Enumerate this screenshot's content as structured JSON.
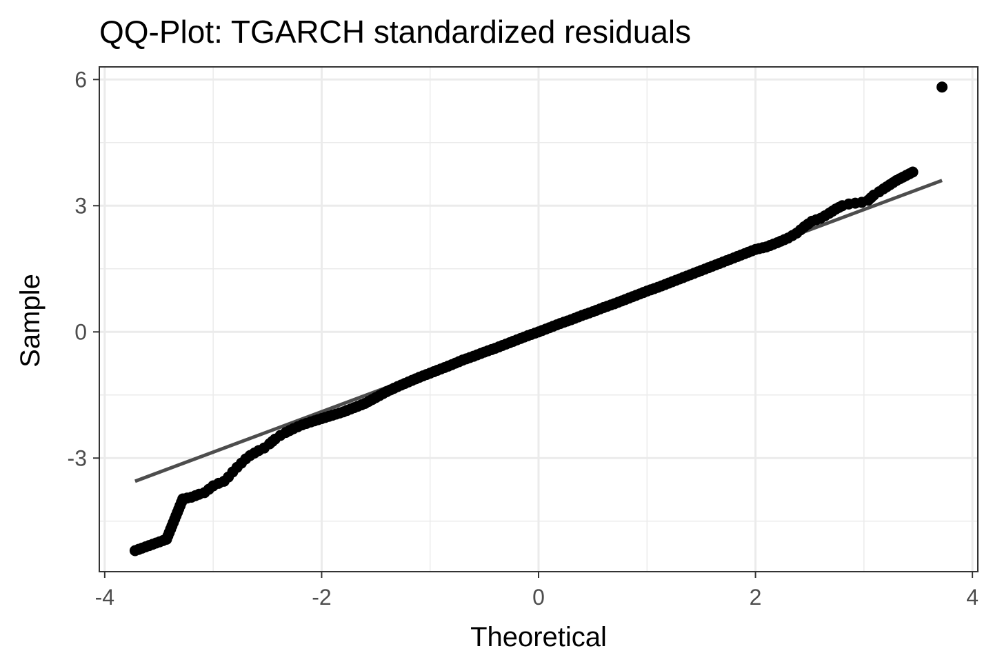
{
  "chart_data": {
    "type": "scatter",
    "title": "QQ-Plot: TGARCH standardized residuals",
    "xlabel": "Theoretical",
    "ylabel": "Sample",
    "xlim": [
      -4.05,
      4.05
    ],
    "ylim": [
      -5.7,
      6.3
    ],
    "xticks": [
      -4,
      -2,
      0,
      2,
      4
    ],
    "xtick_labels": [
      "-4",
      "-2",
      "0",
      "2",
      "4"
    ],
    "yticks": [
      -3,
      0,
      3,
      6
    ],
    "ytick_labels": [
      "-3",
      "0",
      "3",
      "6"
    ],
    "grid": true,
    "legend": "none",
    "point_color": "#000000",
    "line_color": "#4d4d4d",
    "reference_line": {
      "x": [
        -3.72,
        3.72
      ],
      "y": [
        -3.55,
        3.6
      ]
    },
    "points": [
      [
        -3.72,
        -5.2
      ],
      [
        -3.43,
        -4.93
      ],
      [
        -3.28,
        -3.97
      ],
      [
        -3.2,
        -3.93
      ],
      [
        -3.13,
        -3.86
      ],
      [
        -3.08,
        -3.82
      ],
      [
        -3.04,
        -3.74
      ],
      [
        -3.0,
        -3.66
      ],
      [
        -2.95,
        -3.6
      ],
      [
        -2.9,
        -3.55
      ],
      [
        -2.86,
        -3.45
      ],
      [
        -2.82,
        -3.33
      ],
      [
        -2.78,
        -3.22
      ],
      [
        -2.74,
        -3.12
      ],
      [
        -2.7,
        -3.02
      ],
      [
        -2.66,
        -2.94
      ],
      [
        -2.62,
        -2.88
      ],
      [
        -2.58,
        -2.82
      ],
      [
        -2.53,
        -2.76
      ],
      [
        -2.48,
        -2.66
      ],
      [
        -2.43,
        -2.55
      ],
      [
        -2.38,
        -2.46
      ],
      [
        -2.33,
        -2.39
      ],
      [
        -2.26,
        -2.3
      ],
      [
        -2.18,
        -2.21
      ],
      [
        -2.1,
        -2.14
      ],
      [
        -2.0,
        -2.06
      ],
      [
        -1.9,
        -1.98
      ],
      [
        -1.8,
        -1.9
      ],
      [
        -1.7,
        -1.8
      ],
      [
        -1.6,
        -1.7
      ],
      [
        -1.5,
        -1.56
      ],
      [
        -1.4,
        -1.42
      ],
      [
        -1.3,
        -1.3
      ],
      [
        -1.2,
        -1.19
      ],
      [
        -1.1,
        -1.08
      ],
      [
        -1.0,
        -0.98
      ],
      [
        -0.9,
        -0.88
      ],
      [
        -0.8,
        -0.78
      ],
      [
        -0.7,
        -0.67
      ],
      [
        -0.6,
        -0.58
      ],
      [
        -0.5,
        -0.48
      ],
      [
        -0.4,
        -0.39
      ],
      [
        -0.3,
        -0.29
      ],
      [
        -0.2,
        -0.19
      ],
      [
        -0.1,
        -0.09
      ],
      [
        0.0,
        0.0
      ],
      [
        0.1,
        0.1
      ],
      [
        0.2,
        0.2
      ],
      [
        0.3,
        0.29
      ],
      [
        0.4,
        0.39
      ],
      [
        0.5,
        0.48
      ],
      [
        0.6,
        0.58
      ],
      [
        0.7,
        0.67
      ],
      [
        0.8,
        0.77
      ],
      [
        0.9,
        0.87
      ],
      [
        1.0,
        0.97
      ],
      [
        1.1,
        1.06
      ],
      [
        1.2,
        1.16
      ],
      [
        1.3,
        1.26
      ],
      [
        1.4,
        1.36
      ],
      [
        1.5,
        1.46
      ],
      [
        1.6,
        1.56
      ],
      [
        1.7,
        1.66
      ],
      [
        1.8,
        1.76
      ],
      [
        1.9,
        1.86
      ],
      [
        2.0,
        1.96
      ],
      [
        2.1,
        2.02
      ],
      [
        2.2,
        2.12
      ],
      [
        2.3,
        2.23
      ],
      [
        2.38,
        2.35
      ],
      [
        2.45,
        2.5
      ],
      [
        2.52,
        2.63
      ],
      [
        2.6,
        2.7
      ],
      [
        2.68,
        2.82
      ],
      [
        2.74,
        2.92
      ],
      [
        2.8,
        3.0
      ],
      [
        2.86,
        3.04
      ],
      [
        2.92,
        3.06
      ],
      [
        2.98,
        3.08
      ],
      [
        3.04,
        3.13
      ],
      [
        3.09,
        3.25
      ],
      [
        3.14,
        3.33
      ],
      [
        3.18,
        3.4
      ],
      [
        3.3,
        3.6
      ],
      [
        3.45,
        3.8
      ],
      [
        3.72,
        5.82
      ]
    ]
  }
}
